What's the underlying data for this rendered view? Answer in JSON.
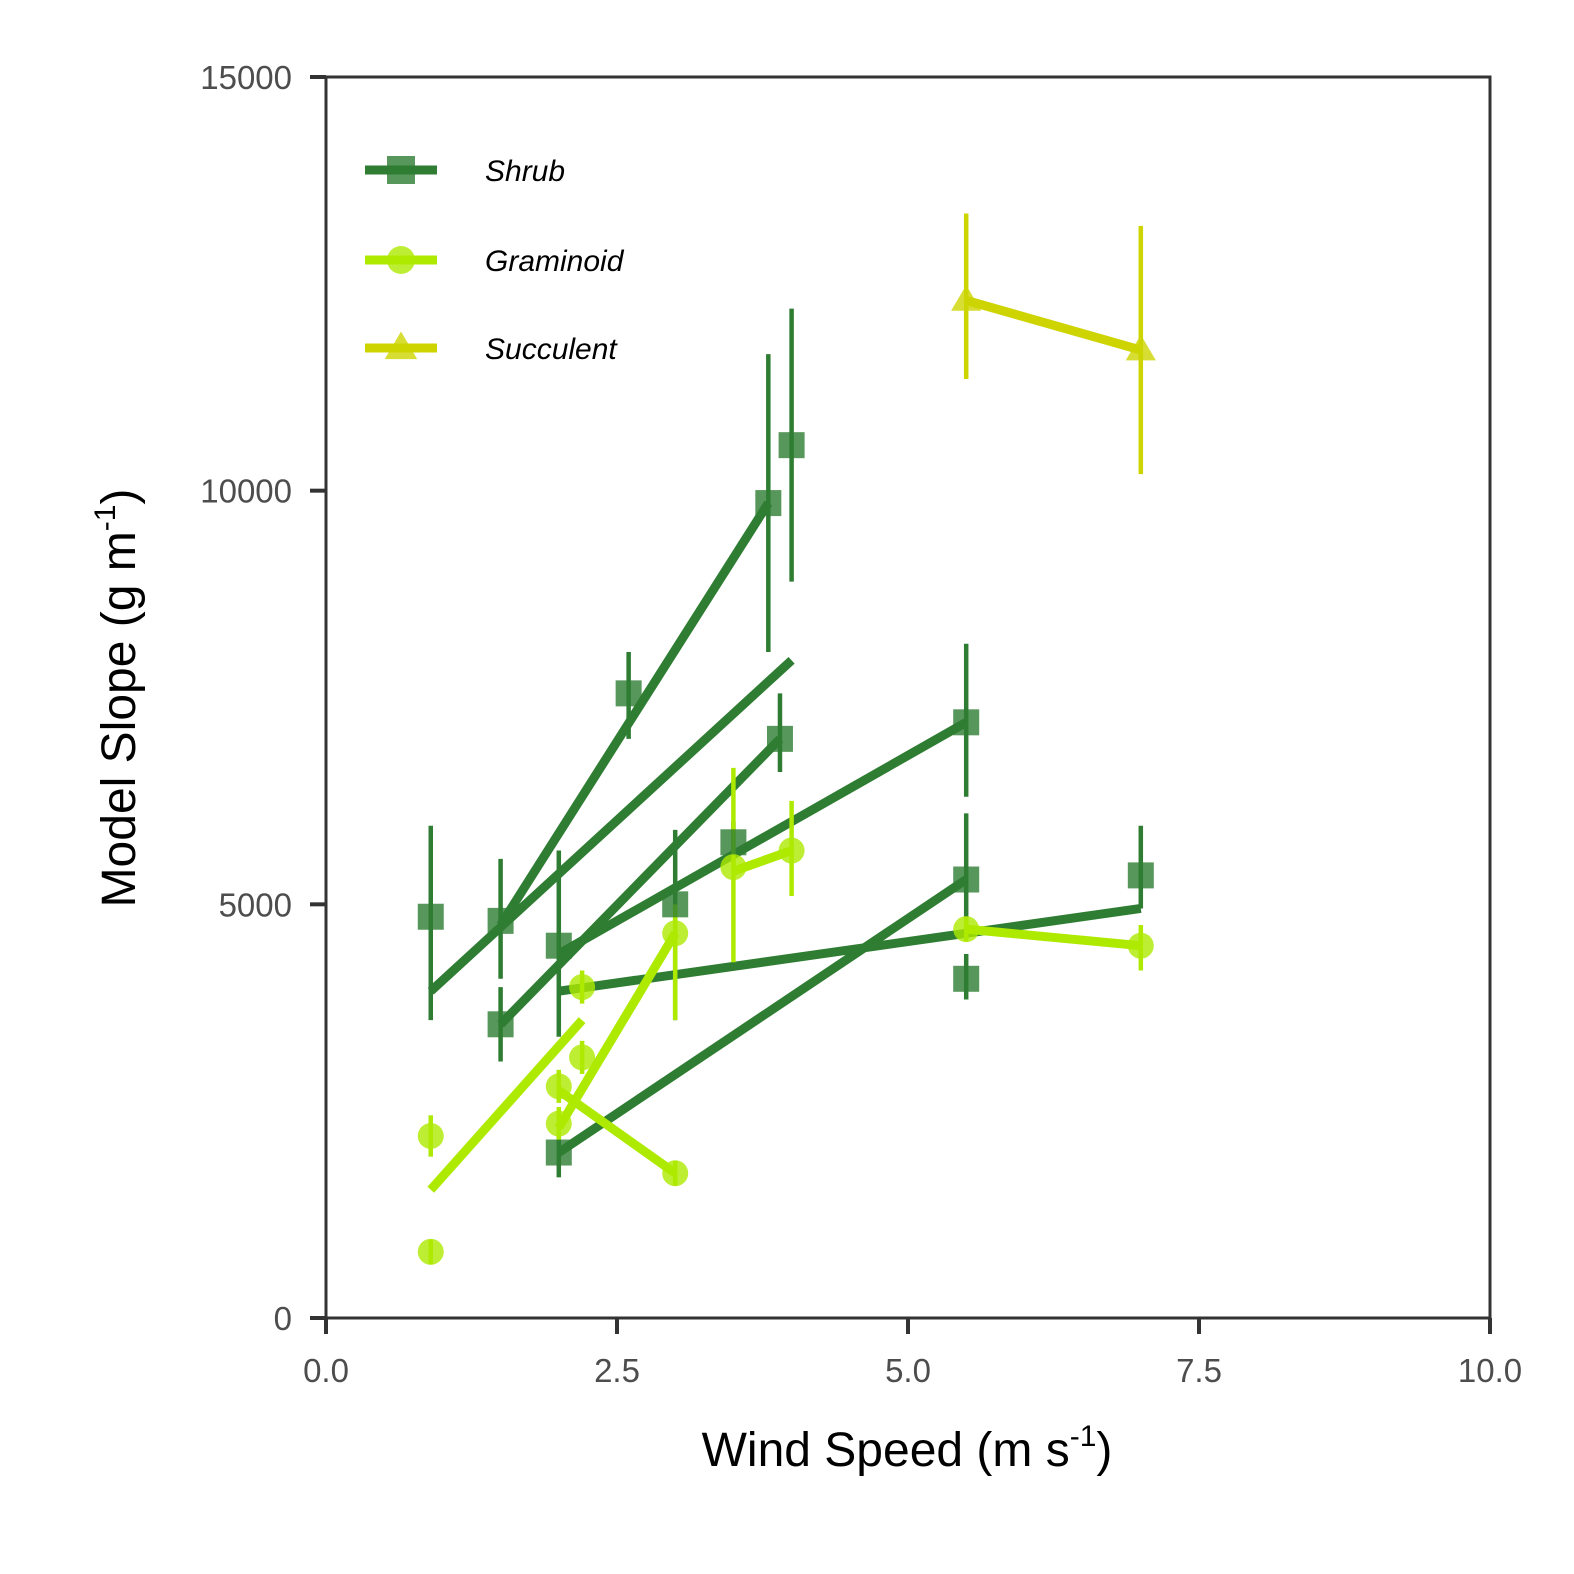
{
  "chart_data": {
    "type": "scatter",
    "xlabel": "Wind Speed (m s",
    "xlabel_sup": "-1",
    "xlabel_end": ")",
    "ylabel": "Model Slope (g m",
    "ylabel_sup": "-1",
    "ylabel_end": ")",
    "xlim": [
      0,
      10
    ],
    "ylim": [
      0,
      15000
    ],
    "x_ticks": [
      0,
      2.5,
      5,
      7.5,
      10
    ],
    "x_tick_labels": [
      "0.0",
      "2.5",
      "5.0",
      "7.5",
      "10.0"
    ],
    "y_ticks": [
      0,
      5000,
      10000,
      15000
    ],
    "y_tick_labels": [
      "0",
      "5000",
      "10000",
      "15000"
    ],
    "grid": false,
    "legend_position": "top-left",
    "series": [
      {
        "name": "Shrub",
        "marker": "square",
        "color": "#2e7d32",
        "points": [
          {
            "x": 0.9,
            "y": 4850,
            "err": [
              3600,
              5950
            ]
          },
          {
            "x": 1.5,
            "y": 4800,
            "err": [
              4100,
              5550
            ]
          },
          {
            "x": 1.5,
            "y": 3550,
            "err": [
              3100,
              4000
            ]
          },
          {
            "x": 2.0,
            "y": 4500,
            "err": [
              3400,
              5650
            ]
          },
          {
            "x": 2.0,
            "y": 2000,
            "err": [
              1700,
              2200
            ]
          },
          {
            "x": 2.6,
            "y": 7550,
            "err": [
              7000,
              8050
            ]
          },
          {
            "x": 3.0,
            "y": 5000,
            "err": [
              3600,
              5900
            ]
          },
          {
            "x": 3.5,
            "y": 5750,
            "err": [
              5500,
              6000
            ]
          },
          {
            "x": 3.8,
            "y": 9850,
            "err": [
              8050,
              11650
            ]
          },
          {
            "x": 3.9,
            "y": 7000,
            "err": [
              6600,
              7550
            ]
          },
          {
            "x": 4.0,
            "y": 10550,
            "err": [
              8900,
              12200
            ]
          },
          {
            "x": 5.5,
            "y": 7200,
            "err": [
              6300,
              8150
            ]
          },
          {
            "x": 5.5,
            "y": 5300,
            "err": [
              4700,
              6100
            ]
          },
          {
            "x": 5.5,
            "y": 4100,
            "err": [
              3850,
              4400
            ]
          },
          {
            "x": 7.0,
            "y": 5350,
            "err": [
              4950,
              5950
            ]
          }
        ],
        "fits": [
          {
            "x": [
              0.9,
              4.0
            ],
            "y": [
              3950,
              7950
            ]
          },
          {
            "x": [
              1.5,
              3.8
            ],
            "y": [
              4750,
              9850
            ]
          },
          {
            "x": [
              1.5,
              3.9
            ],
            "y": [
              3550,
              7000
            ]
          },
          {
            "x": [
              2.0,
              5.5
            ],
            "y": [
              4400,
              7200
            ]
          },
          {
            "x": [
              2.0,
              5.5
            ],
            "y": [
              2000,
              5300
            ]
          },
          {
            "x": [
              2.0,
              7.0
            ],
            "y": [
              3950,
              4950
            ]
          }
        ]
      },
      {
        "name": "Graminoid",
        "marker": "circle",
        "color": "#aeea00",
        "points": [
          {
            "x": 0.9,
            "y": 2200,
            "err": [
              1950,
              2450
            ]
          },
          {
            "x": 0.9,
            "y": 800,
            "err": [
              650,
              950
            ]
          },
          {
            "x": 2.0,
            "y": 2800,
            "err": [
              2600,
              3000
            ]
          },
          {
            "x": 2.0,
            "y": 2350,
            "err": [
              2150,
              2550
            ]
          },
          {
            "x": 2.2,
            "y": 4000,
            "err": [
              3800,
              4200
            ]
          },
          {
            "x": 2.2,
            "y": 3150,
            "err": [
              2950,
              3350
            ]
          },
          {
            "x": 3.0,
            "y": 4650,
            "err": [
              3600,
              5000
            ]
          },
          {
            "x": 3.0,
            "y": 1750,
            "err": [
              1600,
              1900
            ]
          },
          {
            "x": 3.5,
            "y": 5450,
            "err": [
              4300,
              6650
            ]
          },
          {
            "x": 4.0,
            "y": 5650,
            "err": [
              5100,
              6250
            ]
          },
          {
            "x": 5.5,
            "y": 4700,
            "err": [
              4550,
              4850
            ]
          },
          {
            "x": 7.0,
            "y": 4500,
            "err": [
              4200,
              4750
            ]
          }
        ],
        "fits": [
          {
            "x": [
              0.9,
              2.2
            ],
            "y": [
              1550,
              3600
            ]
          },
          {
            "x": [
              2.0,
              3.0
            ],
            "y": [
              2300,
              4650
            ]
          },
          {
            "x": [
              2.0,
              3.0
            ],
            "y": [
              2750,
              1750
            ]
          },
          {
            "x": [
              3.5,
              4.0
            ],
            "y": [
              5400,
              5650
            ]
          },
          {
            "x": [
              5.5,
              7.0
            ],
            "y": [
              4700,
              4500
            ]
          }
        ]
      },
      {
        "name": "Succulent",
        "marker": "triangle",
        "color": "#cdd400",
        "points": [
          {
            "x": 5.5,
            "y": 12300,
            "err": [
              11350,
              13350
            ]
          },
          {
            "x": 7.0,
            "y": 11700,
            "err": [
              10200,
              13200
            ]
          }
        ],
        "fits": [
          {
            "x": [
              5.5,
              7.0
            ],
            "y": [
              12300,
              11700
            ]
          }
        ]
      }
    ]
  }
}
